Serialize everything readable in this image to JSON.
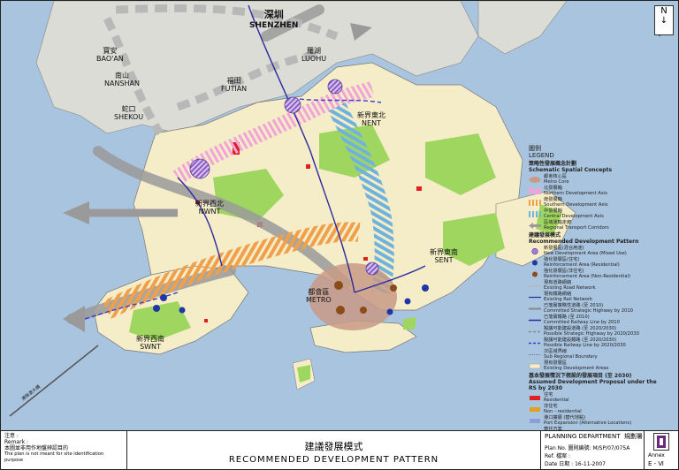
{
  "map": {
    "north_label": "N",
    "places": {
      "shenzhen_zh": "深圳",
      "shenzhen_en": "SHENZHEN",
      "baoan_zh": "寶安",
      "baoan_en": "BAO'AN",
      "luohu_zh": "羅湖",
      "luohu_en": "LUOHU",
      "nanshan_zh": "南山",
      "nanshan_en": "NANSHAN",
      "futian_zh": "福田",
      "futian_en": "FUTIAN",
      "shekou_zh": "蛇口",
      "shekou_en": "SHEKOU",
      "nent_zh": "新界東北",
      "nent_en": "NENT",
      "nwnt_zh": "新界西北",
      "nwnt_en": "NWNT",
      "sent_zh": "新界東南",
      "sent_en": "SENT",
      "metro_zh": "都會區",
      "metro_en": "METRO",
      "swnt_zh": "新界西南",
      "swnt_en": "SWNT",
      "bridge_label": "港珠澳大橋"
    }
  },
  "legend": {
    "title_zh": "圖例",
    "title_en": "LEGEND",
    "schematic_zh": "策略性發展概念計劃",
    "schematic_en": "Schematic Spatial Concepts",
    "metro_core_zh": "都會核心區",
    "metro_core_en": "Metro Core",
    "north_axis_zh": "北發展軸",
    "north_axis_en": "Northern Development Axis",
    "south_axis_zh": "南發展軸",
    "south_axis_en": "Southern Development Axis",
    "central_axis_zh": "中發展軸",
    "central_axis_en": "Central Development Axis",
    "regional_zh": "區域運輸走廊",
    "regional_en": "Regional Transport Corridors",
    "recommended_zh": "建議發展模式",
    "recommended_en": "Recommended Development Pattern",
    "items": [
      {
        "zh": "新發展區(混合用途)",
        "en": "New Development Area (Mixed Use)"
      },
      {
        "zh": "強化發展區(住宅)",
        "en": "Reinforcement Area (Residential)"
      },
      {
        "zh": "強化發展區(非住宅)",
        "en": "Reinforcement Area (Non-Residential)"
      },
      {
        "zh": "現有道路網絡",
        "en": "Existing Road Network"
      },
      {
        "zh": "現有鐵路網絡",
        "en": "Existing Rail Network"
      },
      {
        "zh": "已落實策略性道路 (至 2010)",
        "en": "Committed Strategic Highway by 2010"
      },
      {
        "zh": "已落實鐵路 (至 2010)",
        "en": "Committed Railway Line by 2010"
      },
      {
        "zh": "擬議可能建設道路 (至 2020/2030)",
        "en": "Possible Strategic Highway by 2020/2030"
      },
      {
        "zh": "擬議可能建設鐵路 (至 2020/2030)",
        "en": "Possible Railway Line by 2020/2030"
      },
      {
        "zh": "次區域界線",
        "en": "Sub Regional Boundary"
      },
      {
        "zh": "現有發展區",
        "en": "Existing Development Areas"
      }
    ],
    "assumed_zh": "基本發展情況下假設的發展項目 (至 2030)",
    "assumed_en": "Assumed Development Proposal under the RS by 2030",
    "assumed_items": [
      {
        "zh": "住宅",
        "en": "Residential"
      },
      {
        "zh": "非住宅",
        "en": "Non - residential"
      },
      {
        "zh": "港口擴展 (替代地點)",
        "en": "Port Expansion (Alternative Locations)"
      },
      {
        "zh": "替代方案",
        "en": "Alternative Options"
      },
      {
        "zh": "保留 / 擴展的郊野公園",
        "en": "Countryside Area to be Retained / Extended"
      },
      {
        "zh": "作另行研究的邊境地區",
        "en": "Closed Area subject to separate study"
      }
    ]
  },
  "footer": {
    "remark_zh": "注意 :",
    "remark_en": "Remark :",
    "remark_line_zh": "本圖並非用作地盤辨認目的",
    "remark_line_en": "The plan is not meant for site identification purpose",
    "title_zh": "建議發展模式",
    "title_en": "RECOMMENDED  DEVELOPMENT  PATTERN",
    "dept_en": "PLANNING  DEPARTMENT",
    "dept_zh": "規劃署",
    "plan_no": "Plan No. 圖則編號: M/SP/07/075A",
    "ref": "Ref.    檔案 :",
    "date": "Date   日期 :     16-11-2007",
    "annex_en": "Annex",
    "annex_no": "E - Ⅵ"
  },
  "colors": {
    "sea": "#a9c4df",
    "land": "#f5ecc8",
    "green": "#9fd65f",
    "north_axis": "#f2a3d8",
    "south_axis": "#f0a04a",
    "central_axis": "#6fb2dc",
    "metro_core": "#c89a86",
    "regional": "#9a9a9a",
    "new_dev": "#a57bd3"
  }
}
